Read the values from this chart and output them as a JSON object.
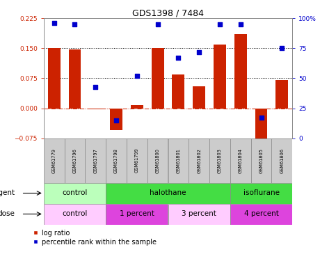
{
  "title": "GDS1398 / 7484",
  "samples": [
    "GSM61779",
    "GSM61796",
    "GSM61797",
    "GSM61798",
    "GSM61799",
    "GSM61800",
    "GSM61801",
    "GSM61802",
    "GSM61803",
    "GSM61804",
    "GSM61805",
    "GSM61806"
  ],
  "log_ratio": [
    0.15,
    0.148,
    -0.002,
    -0.055,
    0.008,
    0.151,
    0.085,
    0.055,
    0.16,
    0.185,
    -0.095,
    0.07
  ],
  "percentile_rank": [
    96,
    95,
    43,
    15,
    52,
    95,
    67,
    72,
    95,
    95,
    17,
    75
  ],
  "bar_color": "#cc2200",
  "dot_color": "#0000cc",
  "yticks_left": [
    -0.075,
    0.0,
    0.075,
    0.15,
    0.225
  ],
  "yticks_right": [
    0,
    25,
    50,
    75,
    100
  ],
  "ylim_left": [
    -0.075,
    0.225
  ],
  "ylim_right": [
    0,
    100
  ],
  "hlines": [
    0.075,
    0.15
  ],
  "agent_groups": [
    {
      "label": "control",
      "start": 0,
      "end": 3,
      "color": "#bbffbb"
    },
    {
      "label": "halothane",
      "start": 3,
      "end": 9,
      "color": "#44dd44"
    },
    {
      "label": "isoflurane",
      "start": 9,
      "end": 12,
      "color": "#44dd44"
    }
  ],
  "dose_groups": [
    {
      "label": "control",
      "start": 0,
      "end": 3,
      "color": "#ffccff"
    },
    {
      "label": "1 percent",
      "start": 3,
      "end": 6,
      "color": "#dd44dd"
    },
    {
      "label": "3 percent",
      "start": 6,
      "end": 9,
      "color": "#ffccff"
    },
    {
      "label": "4 percent",
      "start": 9,
      "end": 12,
      "color": "#dd44dd"
    }
  ],
  "legend_bar_label": "log ratio",
  "legend_dot_label": "percentile rank within the sample",
  "agent_label": "agent",
  "dose_label": "dose",
  "tick_color_left": "#cc2200",
  "tick_color_right": "#0000cc",
  "bar_width": 0.6
}
